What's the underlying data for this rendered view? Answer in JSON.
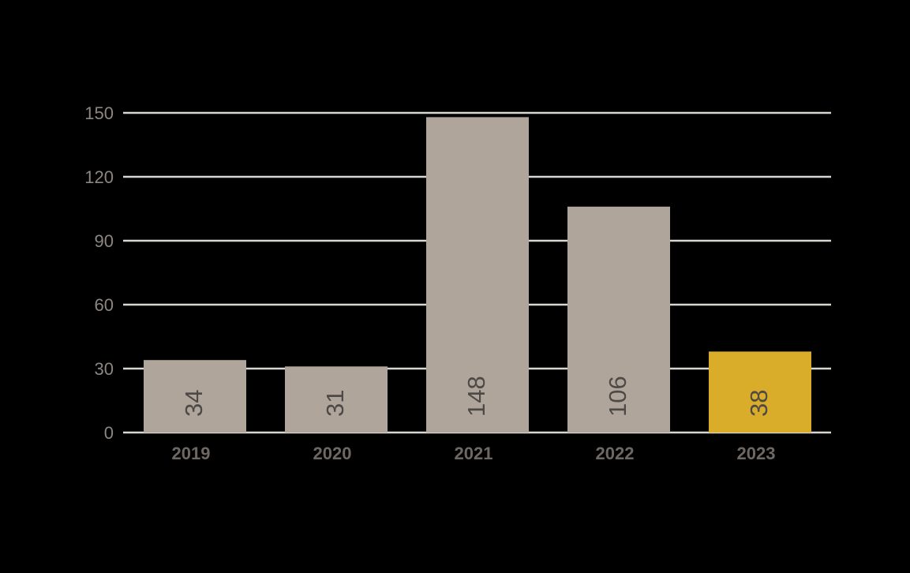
{
  "chart_data": {
    "type": "bar",
    "categories": [
      "2019",
      "2020",
      "2021",
      "2022",
      "2023"
    ],
    "values": [
      34,
      31,
      148,
      106,
      38
    ],
    "value_labels": [
      "34",
      "31",
      "148",
      "106",
      "38"
    ],
    "y_ticks": [
      "0",
      "30",
      "60",
      "90",
      "120",
      "150"
    ],
    "ylim": [
      0,
      150
    ],
    "grid": true,
    "colors": {
      "bar": "#b0a59b",
      "highlight": "#d9ac2a",
      "grid": "#d9d6d2",
      "background": "#000000"
    },
    "highlight_index": 4
  }
}
